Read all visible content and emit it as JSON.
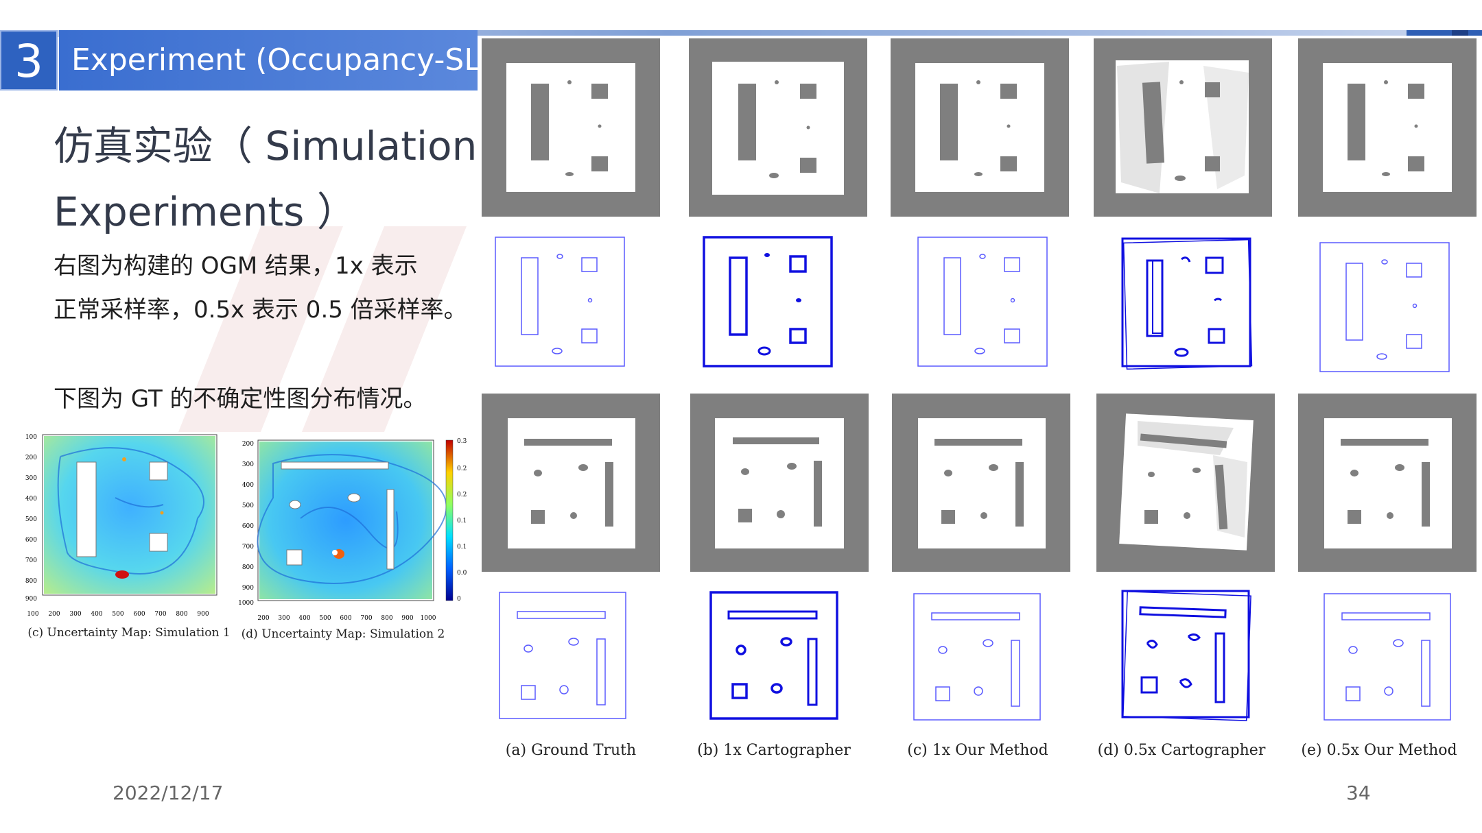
{
  "section": {
    "number": "3",
    "title": "Experiment (Occupancy-SLAM)"
  },
  "heading": {
    "line1": "仿真实验（ Simulation",
    "line2": "Experiments ）"
  },
  "para": {
    "line1": "右图为构建的 OGM 结果，1x 表示",
    "line2": "正常采样率，0.5x 表示 0.5 倍采样率。",
    "line3": "下图为 GT 的不确定性图分布情况。"
  },
  "uncertainty_maps": [
    {
      "caption": "(c) Uncertainty Map: Simulation 1",
      "y_ticks": [
        "100",
        "200",
        "300",
        "400",
        "500",
        "600",
        "700",
        "800",
        "900"
      ],
      "x_ticks": [
        "100",
        "200",
        "300",
        "400",
        "500",
        "600",
        "700",
        "800",
        "900"
      ]
    },
    {
      "caption": "(d) Uncertainty Map: Simulation 2",
      "y_ticks": [
        "200",
        "300",
        "400",
        "500",
        "600",
        "700",
        "800",
        "900",
        "1000"
      ],
      "x_ticks": [
        "200",
        "300",
        "400",
        "500",
        "600",
        "700",
        "800",
        "900",
        "1000"
      ]
    }
  ],
  "colorbar_ticks": [
    "0.3",
    "0.25",
    "0.2",
    "0.15",
    "0.1",
    "0.05",
    "0"
  ],
  "figure_captions": [
    "(a) Ground Truth",
    "(b) 1x Cartographer",
    "(c) 1x Our Method",
    "(d) 0.5x Cartographer",
    "(e) 0.5x Our Method"
  ],
  "colors": {
    "accent": "#2e62c0",
    "map_gray": "#7f7f7f",
    "map_outline": "#1f1fd0"
  },
  "footer": {
    "date": "2022/12/17",
    "page": "34"
  }
}
